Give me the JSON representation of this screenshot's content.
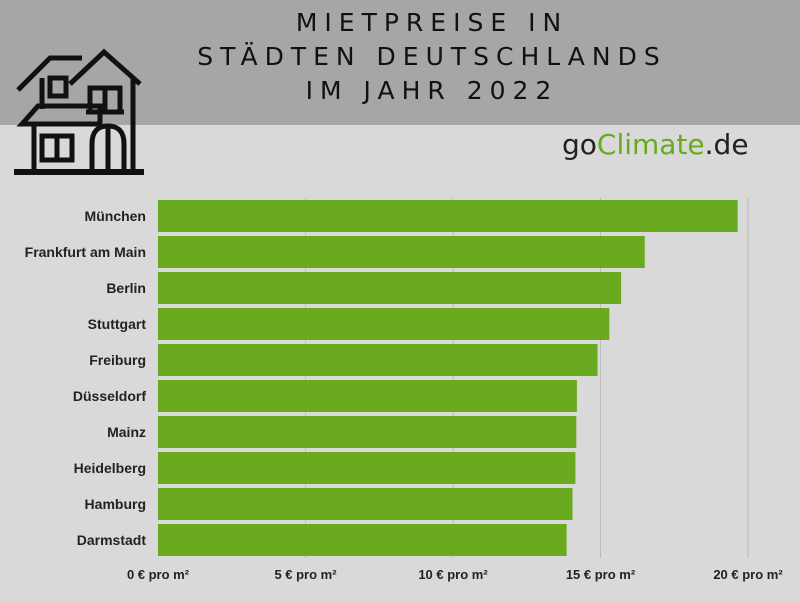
{
  "header": {
    "title_lines": [
      "MIETPREISE IN",
      "STÄDTEN DEUTSCHLANDS",
      "IM JAHR 2022"
    ]
  },
  "brand": {
    "prefix": "go",
    "highlight": "Climate",
    "suffix": ".de"
  },
  "colors": {
    "bar": "#6aaa1e",
    "header_band": "#a6a6a6",
    "background": "#d9d9d9",
    "brand_accent": "#6aaa1e"
  },
  "icons": {
    "logo": "house-icon"
  },
  "chart_data": {
    "type": "bar",
    "orientation": "horizontal",
    "title": "MIETPREISE IN STÄDTEN DEUTSCHLANDS IM JAHR 2022",
    "categories": [
      "München",
      "Frankfurt am Main",
      "Berlin",
      "Stuttgart",
      "Freiburg",
      "Düsseldorf",
      "Mainz",
      "Heidelberg",
      "Hamburg",
      "Darmstadt"
    ],
    "values": [
      19.65,
      16.5,
      15.7,
      15.3,
      14.9,
      14.2,
      14.18,
      14.15,
      14.05,
      13.85
    ],
    "xlim": [
      0,
      20
    ],
    "x_ticks": [
      0,
      5,
      10,
      15,
      20
    ],
    "x_tick_labels": [
      "0 € pro m²",
      "5 € pro m²",
      "10 € pro m²",
      "15 € pro m²",
      "20 € pro m²"
    ],
    "grid": true
  }
}
